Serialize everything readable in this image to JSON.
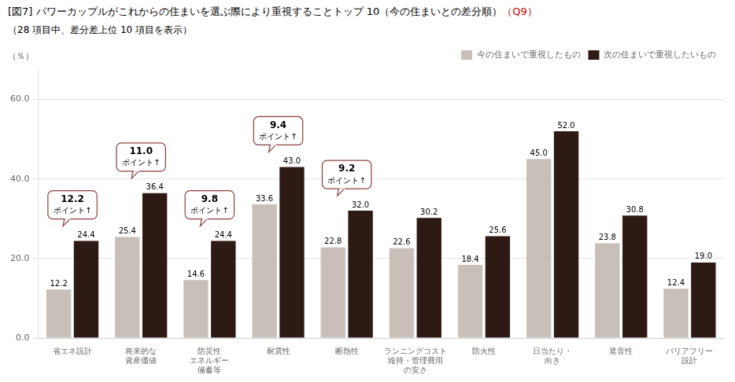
{
  "chart_data": {
    "type": "bar",
    "title": "[図7] パワーカップルがこれからの住まいを選ぶ際により重視することトップ 10（今の住まいとの差分順）",
    "title_tag": {
      "text": "（Q9）",
      "color": "#cc0000"
    },
    "subtitle": "（28 項目中、差分差上位 10 項目を表示）",
    "ylabel": "（％）",
    "categories": [
      "省エネ設計",
      "将来的な\n資産価値",
      "防災性\nエネルギー\n備蓄等",
      "耐震性",
      "断熱性",
      "ランニングコスト\n維持・管理費用\nの安さ",
      "防火性",
      "日当たり・\n向き",
      "遮音性",
      "バリアフリー\n設計"
    ],
    "series": [
      {
        "name": "今の住まいで重視したもの",
        "color": "#c8c0b8",
        "values": [
          12.2,
          25.4,
          14.6,
          33.6,
          22.8,
          22.6,
          18.4,
          45.0,
          23.8,
          12.4
        ],
        "value_labels": [
          "12.2",
          "25.4",
          "14.6",
          "33.6",
          "22.8",
          "22.6",
          "18.4",
          "45.0",
          "23.8",
          "12.4"
        ]
      },
      {
        "name": "次の住まいで重視したいもの",
        "color": "#2d1a14",
        "values": [
          24.4,
          36.4,
          24.4,
          43.0,
          32.0,
          30.2,
          25.6,
          52.0,
          30.8,
          19.0
        ],
        "value_labels": [
          "24.4",
          "36.4",
          "24.4",
          "43.0",
          "32.0",
          "30.2",
          "25.6",
          "52.0",
          "30.8",
          "19.0"
        ]
      }
    ],
    "annotations": [
      {
        "category": "省エネ設計",
        "text": "12.2\nポイント↑",
        "color": "#8b4040"
      },
      {
        "category": "将来的な\n資産価値",
        "text": "11.0\nポイント↑",
        "color": "#8b4040"
      },
      {
        "category": "防災性\nエネルギー\n備蓄等",
        "text": "9.8\nポイント↑",
        "color": "#8b4040"
      },
      {
        "category": "耐震性",
        "text": "9.4\nポイント↑",
        "color": "#8b4040"
      },
      {
        "category": "断熱性",
        "text": "9.2\nポイント↑",
        "color": "#8b4040"
      }
    ],
    "ylim": [
      0,
      68
    ],
    "yticks": [
      {
        "value": 0,
        "label": "0.0"
      },
      {
        "value": 20,
        "label": "20.0"
      },
      {
        "value": 40,
        "label": "40.0"
      },
      {
        "value": 60,
        "label": "60.0"
      }
    ],
    "grid": true,
    "legend": "upper right",
    "data_labels": true
  }
}
